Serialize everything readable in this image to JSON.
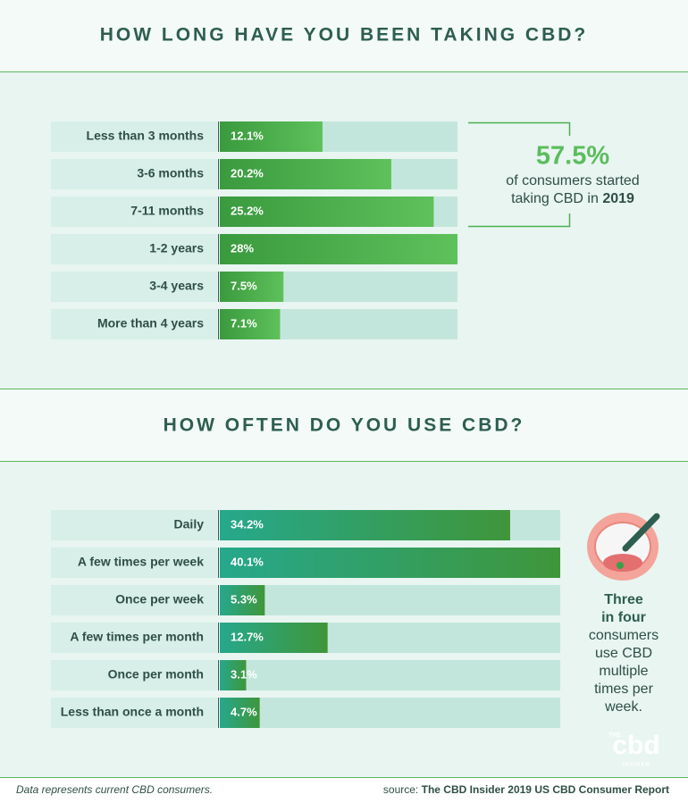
{
  "chart_data": [
    {
      "type": "hbar",
      "title": "HOW LONG HAVE YOU BEEN TAKING CBD?",
      "categories": [
        "Less than 3 months",
        "3-6 months",
        "7-11 months",
        "1-2 years",
        "3-4 years",
        "More than 4 years"
      ],
      "values": [
        12.1,
        20.2,
        25.2,
        28,
        7.5,
        7.1
      ],
      "value_labels": [
        "12.1%",
        "20.2%",
        "25.2%",
        "28%",
        "7.5%",
        "7.1%"
      ],
      "xlim": [
        0,
        28
      ],
      "colors": [
        "#3a9a3e",
        "#5ec15b"
      ],
      "annotation": {
        "highlight": "57.5%",
        "lines": [
          "of consumers started",
          "taking CBD in"
        ],
        "emphasis": "2019"
      }
    },
    {
      "type": "hbar",
      "title": "HOW OFTEN DO YOU USE CBD?",
      "categories": [
        "Daily",
        "A few times per week",
        "Once per week",
        "A few times per month",
        "Once per month",
        "Less than once a month"
      ],
      "values": [
        34.2,
        40.1,
        5.3,
        12.7,
        3.1,
        4.7
      ],
      "value_labels": [
        "34.2%",
        "40.1%",
        "5.3%",
        "12.7%",
        "3.1%",
        "4.7%"
      ],
      "xlim": [
        0,
        40.1
      ],
      "colors": [
        "#26a88c",
        "#3f963a"
      ],
      "annotation": {
        "emphasis_lines": [
          "Three",
          "in four"
        ],
        "lines": [
          "consumers",
          "use CBD",
          "multiple",
          "times per",
          "week."
        ]
      }
    }
  ],
  "logo": {
    "top": "THE",
    "main": "cbd",
    "bottom": "INSIDER"
  },
  "footer": {
    "note": "Data represents current CBD consumers.",
    "source_label": "source:",
    "source": "The CBD Insider 2019 US CBD Consumer Report"
  }
}
